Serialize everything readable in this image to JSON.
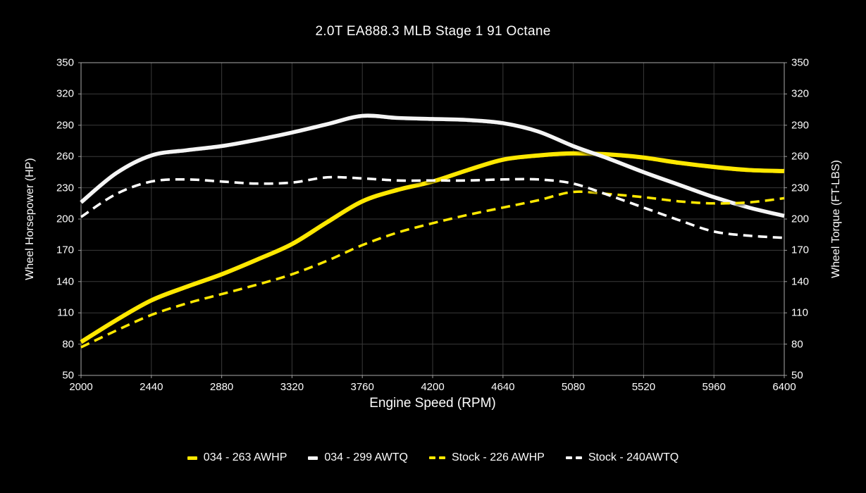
{
  "title": "2.0T EA888.3 MLB Stage 1 91 Octane",
  "colors": {
    "background": "#000000",
    "text": "#FDFDFD",
    "grid": "#3A3A3A",
    "frame": "#AAAAAA",
    "tick": "#999999",
    "yellow": "#FFE800",
    "white_solid": "#F5F5F5",
    "white": "#FFFFFF"
  },
  "chart_data": {
    "type": "line",
    "title": "2.0T EA888.3 MLB Stage 1 91 Octane",
    "xlabel": "Engine Speed (RPM)",
    "ylabel_left": "Wheel Horsepower (HP)",
    "ylabel_right": "Wheel Torque (FT-LBS)",
    "xlim": [
      2000,
      6400
    ],
    "ylim": [
      50,
      350
    ],
    "x_ticks": [
      2000,
      2440,
      2880,
      3320,
      3760,
      4200,
      4640,
      5080,
      5520,
      5960,
      6400
    ],
    "y_ticks": [
      50,
      80,
      110,
      140,
      170,
      200,
      230,
      260,
      290,
      320,
      350
    ],
    "grid": true,
    "legend_position": "bottom",
    "x": [
      2000,
      2220,
      2440,
      2660,
      2880,
      3100,
      3320,
      3540,
      3760,
      3980,
      4200,
      4420,
      4640,
      4860,
      5080,
      5300,
      5520,
      5740,
      5960,
      6180,
      6400
    ],
    "series": [
      {
        "name": "034 - 263 AWHP",
        "color": "#FFE800",
        "style": "solid",
        "axis": "hp",
        "values": [
          82,
          103,
          122,
          135,
          147,
          161,
          176,
          197,
          217,
          228,
          236,
          247,
          257,
          261,
          263,
          262,
          259,
          254,
          250,
          247,
          246
        ]
      },
      {
        "name": "034 - 299 AWTQ",
        "color": "#F5F5F5",
        "style": "solid",
        "axis": "tq",
        "values": [
          216,
          244,
          261,
          266,
          270,
          276,
          283,
          291,
          299,
          297,
          296,
          295,
          292,
          284,
          270,
          258,
          245,
          233,
          221,
          211,
          203
        ]
      },
      {
        "name": "Stock - 226 AWHP",
        "color": "#FFE800",
        "style": "dashed",
        "axis": "hp",
        "values": [
          77,
          93,
          108,
          119,
          128,
          137,
          147,
          160,
          175,
          187,
          196,
          204,
          211,
          218,
          226,
          224,
          221,
          217,
          215,
          216,
          220
        ]
      },
      {
        "name": "Stock - 240AWTQ",
        "color": "#FFFFFF",
        "style": "dashed",
        "axis": "tq",
        "values": [
          202,
          224,
          236,
          238,
          236,
          234,
          235,
          240,
          239,
          237,
          237,
          237,
          238,
          238,
          234,
          223,
          211,
          199,
          188,
          184,
          182
        ]
      }
    ]
  }
}
